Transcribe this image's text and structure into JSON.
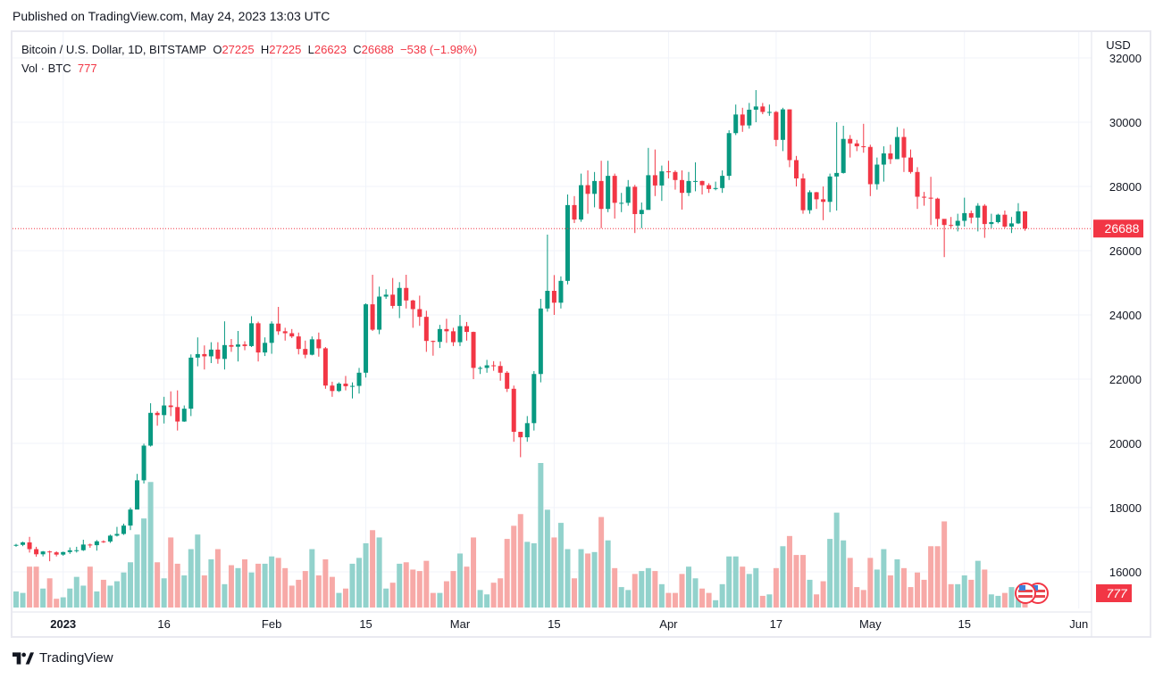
{
  "published": "Published on TradingView.com, May 24, 2023 13:03 UTC",
  "legend": {
    "symbol": "Bitcoin / U.S. Dollar, 1D, BITSTAMP",
    "o_label": "O",
    "o": "27225",
    "h_label": "H",
    "h": "27225",
    "l_label": "L",
    "l": "26623",
    "c_label": "C",
    "c": "26688",
    "change": "−538 (−1.98%)",
    "vol_label": "Vol · BTC",
    "vol": "777"
  },
  "currency": "USD",
  "last_price_label": "26688",
  "last_volume_label": "777",
  "footer": {
    "brand": "TradingView"
  },
  "colors": {
    "up": "#089981",
    "down": "#f23645",
    "up_vol": "#92d2cc",
    "down_vol": "#f7a9a7"
  },
  "chart_data": {
    "type": "candlestick",
    "symbol": "BTCUSD",
    "interval": "1D",
    "start_date": "2022-12-25",
    "first_open": 16830,
    "note_open": "open of each day equals previous close",
    "ylim": [
      15000,
      32500
    ],
    "yticks": [
      16000,
      18000,
      20000,
      22000,
      24000,
      26000,
      28000,
      30000,
      32000
    ],
    "xticks": [
      {
        "label": "2023",
        "date": "2023-01-01"
      },
      {
        "label": "16",
        "date": "2023-01-16"
      },
      {
        "label": "Feb",
        "date": "2023-02-01"
      },
      {
        "label": "15",
        "date": "2023-02-15"
      },
      {
        "label": "Mar",
        "date": "2023-03-01"
      },
      {
        "label": "15",
        "date": "2023-03-15"
      },
      {
        "label": "Apr",
        "date": "2023-04-01"
      },
      {
        "label": "17",
        "date": "2023-04-17"
      },
      {
        "label": "May",
        "date": "2023-05-01"
      },
      {
        "label": "15",
        "date": "2023-05-15"
      },
      {
        "label": "Jun",
        "date": "2023-06-01"
      }
    ],
    "close": [
      16840,
      16917,
      16707,
      16547,
      16634,
      16607,
      16537,
      16616,
      16672,
      16673,
      16850,
      16830,
      16950,
      16943,
      17127,
      17180,
      17440,
      17940,
      18850,
      19930,
      20950,
      20880,
      21180,
      21130,
      20680,
      21080,
      22670,
      22780,
      22710,
      22920,
      22630,
      23060,
      23010,
      23080,
      23030,
      23740,
      22830,
      23130,
      23730,
      23490,
      23430,
      23330,
      22940,
      22760,
      23240,
      22960,
      21800,
      21630,
      21860,
      21780,
      21790,
      22200,
      24330,
      23540,
      24570,
      24630,
      24280,
      24840,
      24450,
      24180,
      23940,
      23190,
      23160,
      23560,
      23490,
      23150,
      23650,
      23470,
      22350,
      22350,
      22430,
      22410,
      22200,
      21700,
      20360,
      20190,
      20630,
      22160,
      24200,
      24750,
      24380,
      25060,
      27420,
      26970,
      28040,
      27770,
      28170,
      27300,
      28330,
      27490,
      27490,
      27990,
      27140,
      27270,
      28350,
      28030,
      28470,
      28450,
      28200,
      27800,
      28170,
      28170,
      28040,
      27920,
      27950,
      28330,
      29660,
      30240,
      29900,
      30390,
      30490,
      30320,
      30320,
      29450,
      30400,
      28820,
      28250,
      27260,
      27820,
      27600,
      27520,
      28310,
      28420,
      29480,
      29340,
      29250,
      29230,
      28070,
      28680,
      29030,
      28850,
      29540,
      28900,
      28450,
      27680,
      27650,
      27620,
      26990,
      26800,
      26780,
      26930,
      27170,
      27030,
      27400,
      26830,
      26890,
      27120,
      26750,
      26850,
      27225,
      26688
    ],
    "high": [
      16870,
      16940,
      17090,
      16780,
      16650,
      16660,
      16640,
      16630,
      16760,
      16780,
      17000,
      16880,
      16990,
      16980,
      17160,
      17400,
      17500,
      18000,
      19050,
      19990,
      21250,
      21000,
      21450,
      21620,
      21650,
      21180,
      22770,
      23300,
      23050,
      23150,
      23150,
      23800,
      23250,
      23500,
      23180,
      23960,
      23790,
      23300,
      23800,
      24250,
      23600,
      23560,
      23450,
      23200,
      23330,
      23450,
      23000,
      21920,
      21900,
      22100,
      21900,
      22350,
      24360,
      25250,
      24880,
      24800,
      25150,
      25020,
      25250,
      24470,
      24600,
      24130,
      23200,
      23690,
      23880,
      23600,
      24000,
      23780,
      23480,
      22400,
      22600,
      22560,
      22550,
      22250,
      21800,
      20300,
      20850,
      22250,
      24500,
      26500,
      25240,
      25200,
      27750,
      27700,
      28400,
      28500,
      28450,
      28800,
      28800,
      28400,
      27800,
      28200,
      28050,
      27500,
      29200,
      29150,
      28650,
      28800,
      28500,
      28500,
      28450,
      28750,
      28180,
      28100,
      28150,
      28500,
      29750,
      30550,
      30450,
      30600,
      31000,
      30600,
      30550,
      30350,
      30450,
      30400,
      28950,
      28400,
      27880,
      27830,
      28000,
      28400,
      30000,
      29890,
      29600,
      29450,
      29950,
      29300,
      28900,
      29250,
      29300,
      29850,
      29800,
      29150,
      28600,
      27830,
      28300,
      27650,
      26950,
      27050,
      27150,
      27650,
      27250,
      27480,
      27450,
      27150,
      27150,
      27250,
      27050,
      27480,
      27225
    ],
    "low": [
      16780,
      16800,
      16600,
      16470,
      16480,
      16330,
      16480,
      16500,
      16560,
      16600,
      16650,
      16750,
      16660,
      16900,
      16900,
      17100,
      17150,
      17300,
      17950,
      18750,
      19900,
      20550,
      20620,
      20850,
      20400,
      20670,
      20850,
      22400,
      22300,
      22500,
      22480,
      22300,
      22850,
      22550,
      22900,
      23000,
      22550,
      22720,
      22790,
      23380,
      23200,
      23280,
      22770,
      22650,
      22740,
      22700,
      21700,
      21450,
      21600,
      21650,
      21400,
      21550,
      22050,
      23500,
      23400,
      24500,
      24200,
      23900,
      24200,
      23600,
      23660,
      22850,
      22730,
      22970,
      23130,
      23030,
      23030,
      23200,
      22000,
      22160,
      22200,
      22260,
      21950,
      21600,
      20050,
      19570,
      20050,
      20400,
      21900,
      24100,
      24000,
      24200,
      24950,
      26860,
      26900,
      27150,
      27350,
      26700,
      27200,
      27000,
      27200,
      27400,
      26550,
      26700,
      27300,
      27700,
      27550,
      28250,
      27900,
      27280,
      27700,
      27850,
      27750,
      27800,
      27880,
      27800,
      28200,
      29600,
      29700,
      29800,
      30000,
      30250,
      30200,
      29250,
      29100,
      28600,
      28000,
      27150,
      27150,
      27300,
      26950,
      27200,
      27250,
      28400,
      28900,
      29100,
      29050,
      27700,
      27900,
      28150,
      28700,
      28850,
      28450,
      28400,
      27300,
      27400,
      26800,
      26750,
      25800,
      26700,
      26600,
      26750,
      26850,
      26600,
      26400,
      26700,
      26850,
      26700,
      26550,
      26830,
      26623
    ],
    "volume": [
      1100,
      1000,
      2800,
      2800,
      1300,
      2000,
      600,
      700,
      1300,
      2100,
      1500,
      2800,
      1100,
      1900,
      1500,
      1800,
      2400,
      3100,
      5000,
      6100,
      8600,
      3100,
      2000,
      4800,
      3000,
      2200,
      4000,
      5000,
      2200,
      3300,
      4000,
      1600,
      2900,
      2700,
      3300,
      2400,
      3000,
      3000,
      3500,
      3400,
      2700,
      1500,
      1900,
      2500,
      4000,
      2200,
      3300,
      2100,
      1000,
      1300,
      3000,
      3400,
      4400,
      5300,
      4800,
      1300,
      1700,
      3000,
      3100,
      2600,
      2500,
      3200,
      1000,
      1000,
      1800,
      2500,
      3700,
      2800,
      4800,
      1200,
      900,
      1700,
      2000,
      4700,
      5600,
      6400,
      4500,
      4400,
      9900,
      6700,
      4800,
      5800,
      4000,
      2000,
      4000,
      3700,
      3800,
      6200,
      4600,
      2700,
      1400,
      1200,
      2300,
      2500,
      2700,
      2500,
      1600,
      1000,
      1000,
      2300,
      2800,
      2000,
      1300,
      1000,
      500,
      1600,
      3500,
      3500,
      2800,
      2300,
      2700,
      800,
      900,
      2700,
      4200,
      4900,
      3600,
      3600,
      1900,
      900,
      1800,
      4700,
      6500,
      4600,
      3400,
      1400,
      1200,
      3400,
      2600,
      4000,
      2200,
      3300,
      2700,
      1400,
      2400,
      1900,
      4200,
      4200,
      5900,
      1600,
      1600,
      2200,
      1900,
      3200,
      2600,
      900,
      800,
      1000,
      1400,
      1300,
      777
    ],
    "last_close": 26688
  }
}
